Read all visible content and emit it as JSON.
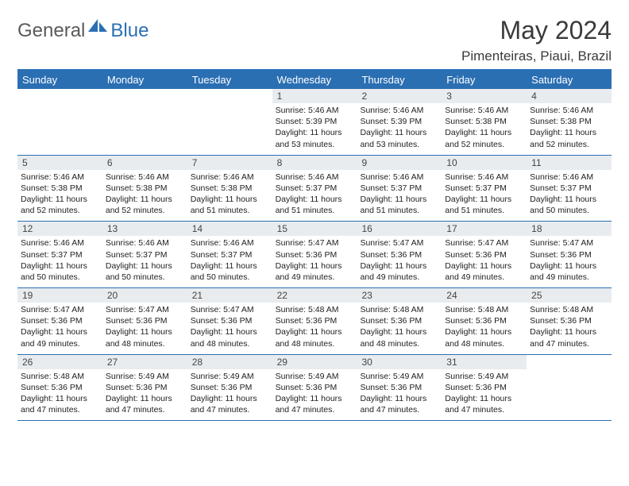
{
  "brand": {
    "general": "General",
    "blue": "Blue"
  },
  "title": "May 2024",
  "location": "Pimenteiras, Piaui, Brazil",
  "colors": {
    "accent": "#2b6fb3",
    "header_bg": "#2b6fb3",
    "header_text": "#ffffff",
    "daynum_bg": "#e9ecef",
    "text": "#1a1a1a",
    "background": "#ffffff"
  },
  "calendar": {
    "type": "table",
    "day_headers": [
      "Sunday",
      "Monday",
      "Tuesday",
      "Wednesday",
      "Thursday",
      "Friday",
      "Saturday"
    ],
    "weeks": [
      [
        null,
        null,
        null,
        {
          "n": "1",
          "sunrise": "5:46 AM",
          "sunset": "5:39 PM",
          "daylight": "11 hours and 53 minutes."
        },
        {
          "n": "2",
          "sunrise": "5:46 AM",
          "sunset": "5:39 PM",
          "daylight": "11 hours and 53 minutes."
        },
        {
          "n": "3",
          "sunrise": "5:46 AM",
          "sunset": "5:38 PM",
          "daylight": "11 hours and 52 minutes."
        },
        {
          "n": "4",
          "sunrise": "5:46 AM",
          "sunset": "5:38 PM",
          "daylight": "11 hours and 52 minutes."
        }
      ],
      [
        {
          "n": "5",
          "sunrise": "5:46 AM",
          "sunset": "5:38 PM",
          "daylight": "11 hours and 52 minutes."
        },
        {
          "n": "6",
          "sunrise": "5:46 AM",
          "sunset": "5:38 PM",
          "daylight": "11 hours and 52 minutes."
        },
        {
          "n": "7",
          "sunrise": "5:46 AM",
          "sunset": "5:38 PM",
          "daylight": "11 hours and 51 minutes."
        },
        {
          "n": "8",
          "sunrise": "5:46 AM",
          "sunset": "5:37 PM",
          "daylight": "11 hours and 51 minutes."
        },
        {
          "n": "9",
          "sunrise": "5:46 AM",
          "sunset": "5:37 PM",
          "daylight": "11 hours and 51 minutes."
        },
        {
          "n": "10",
          "sunrise": "5:46 AM",
          "sunset": "5:37 PM",
          "daylight": "11 hours and 51 minutes."
        },
        {
          "n": "11",
          "sunrise": "5:46 AM",
          "sunset": "5:37 PM",
          "daylight": "11 hours and 50 minutes."
        }
      ],
      [
        {
          "n": "12",
          "sunrise": "5:46 AM",
          "sunset": "5:37 PM",
          "daylight": "11 hours and 50 minutes."
        },
        {
          "n": "13",
          "sunrise": "5:46 AM",
          "sunset": "5:37 PM",
          "daylight": "11 hours and 50 minutes."
        },
        {
          "n": "14",
          "sunrise": "5:46 AM",
          "sunset": "5:37 PM",
          "daylight": "11 hours and 50 minutes."
        },
        {
          "n": "15",
          "sunrise": "5:47 AM",
          "sunset": "5:36 PM",
          "daylight": "11 hours and 49 minutes."
        },
        {
          "n": "16",
          "sunrise": "5:47 AM",
          "sunset": "5:36 PM",
          "daylight": "11 hours and 49 minutes."
        },
        {
          "n": "17",
          "sunrise": "5:47 AM",
          "sunset": "5:36 PM",
          "daylight": "11 hours and 49 minutes."
        },
        {
          "n": "18",
          "sunrise": "5:47 AM",
          "sunset": "5:36 PM",
          "daylight": "11 hours and 49 minutes."
        }
      ],
      [
        {
          "n": "19",
          "sunrise": "5:47 AM",
          "sunset": "5:36 PM",
          "daylight": "11 hours and 49 minutes."
        },
        {
          "n": "20",
          "sunrise": "5:47 AM",
          "sunset": "5:36 PM",
          "daylight": "11 hours and 48 minutes."
        },
        {
          "n": "21",
          "sunrise": "5:47 AM",
          "sunset": "5:36 PM",
          "daylight": "11 hours and 48 minutes."
        },
        {
          "n": "22",
          "sunrise": "5:48 AM",
          "sunset": "5:36 PM",
          "daylight": "11 hours and 48 minutes."
        },
        {
          "n": "23",
          "sunrise": "5:48 AM",
          "sunset": "5:36 PM",
          "daylight": "11 hours and 48 minutes."
        },
        {
          "n": "24",
          "sunrise": "5:48 AM",
          "sunset": "5:36 PM",
          "daylight": "11 hours and 48 minutes."
        },
        {
          "n": "25",
          "sunrise": "5:48 AM",
          "sunset": "5:36 PM",
          "daylight": "11 hours and 47 minutes."
        }
      ],
      [
        {
          "n": "26",
          "sunrise": "5:48 AM",
          "sunset": "5:36 PM",
          "daylight": "11 hours and 47 minutes."
        },
        {
          "n": "27",
          "sunrise": "5:49 AM",
          "sunset": "5:36 PM",
          "daylight": "11 hours and 47 minutes."
        },
        {
          "n": "28",
          "sunrise": "5:49 AM",
          "sunset": "5:36 PM",
          "daylight": "11 hours and 47 minutes."
        },
        {
          "n": "29",
          "sunrise": "5:49 AM",
          "sunset": "5:36 PM",
          "daylight": "11 hours and 47 minutes."
        },
        {
          "n": "30",
          "sunrise": "5:49 AM",
          "sunset": "5:36 PM",
          "daylight": "11 hours and 47 minutes."
        },
        {
          "n": "31",
          "sunrise": "5:49 AM",
          "sunset": "5:36 PM",
          "daylight": "11 hours and 47 minutes."
        },
        null
      ]
    ],
    "labels": {
      "sunrise": "Sunrise:",
      "sunset": "Sunset:",
      "daylight": "Daylight:"
    }
  }
}
